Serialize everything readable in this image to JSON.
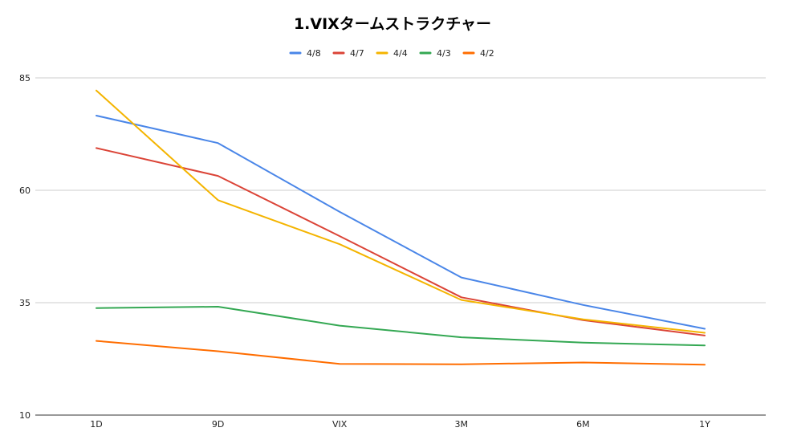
{
  "chart_data": {
    "type": "line",
    "title": "1.VIXタームストラクチャー",
    "categories": [
      "1D",
      "9D",
      "VIX",
      "3M",
      "6M",
      "1Y"
    ],
    "yticks": [
      "10",
      "35",
      "60",
      "85"
    ],
    "ylim": [
      10,
      85
    ],
    "grid": true,
    "legend_position": "top-center",
    "series": [
      {
        "name": "4/8",
        "color": "#4a86e8",
        "values": [
          76.6,
          70.5,
          55.2,
          40.6,
          34.5,
          29.2
        ]
      },
      {
        "name": "4/7",
        "color": "#db4437",
        "values": [
          69.4,
          63.2,
          49.8,
          36.2,
          31.1,
          27.7
        ]
      },
      {
        "name": "4/4",
        "color": "#f4b400",
        "values": [
          82.2,
          57.8,
          48.0,
          35.6,
          31.3,
          28.3
        ]
      },
      {
        "name": "4/3",
        "color": "#34a853",
        "values": [
          33.8,
          34.1,
          29.9,
          27.3,
          26.1,
          25.5
        ]
      },
      {
        "name": "4/2",
        "color": "#ff6d00",
        "values": [
          26.5,
          24.2,
          21.4,
          21.3,
          21.7,
          21.2
        ]
      }
    ]
  }
}
